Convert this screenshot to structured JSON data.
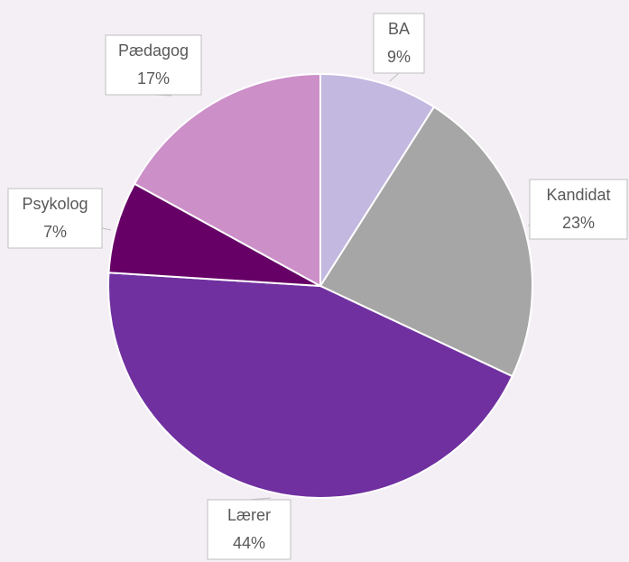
{
  "chart_data": {
    "type": "pie",
    "categories": [
      "BA",
      "Kandidat",
      "Lærer",
      "Psykolog",
      "Pædagog"
    ],
    "values": [
      9,
      23,
      44,
      7,
      17
    ],
    "value_labels": [
      "9%",
      "23%",
      "44%",
      "7%",
      "17%"
    ],
    "colors": [
      "#c3b8e0",
      "#a6a6a6",
      "#7030a0",
      "#660066",
      "#cc8fc8"
    ]
  }
}
